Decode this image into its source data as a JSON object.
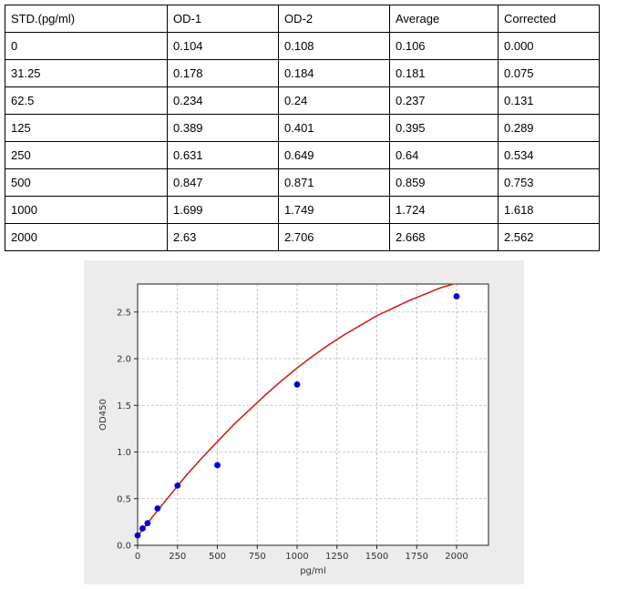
{
  "table": {
    "headers": [
      "STD.(pg/ml)",
      "OD-1",
      "OD-2",
      "Average",
      "Corrected"
    ],
    "rows": [
      [
        "0",
        "0.104",
        "0.108",
        "0.106",
        "0.000"
      ],
      [
        "31.25",
        "0.178",
        "0.184",
        "0.181",
        "0.075"
      ],
      [
        "62.5",
        "0.234",
        "0.24",
        "0.237",
        "0.131"
      ],
      [
        "125",
        "0.389",
        "0.401",
        "0.395",
        "0.289"
      ],
      [
        "250",
        "0.631",
        "0.649",
        "0.64",
        "0.534"
      ],
      [
        "500",
        "0.847",
        "0.871",
        "0.859",
        "0.753"
      ],
      [
        "1000",
        "1.699",
        "1.749",
        "1.724",
        "1.618"
      ],
      [
        "2000",
        "2.63",
        "2.706",
        "2.668",
        "2.562"
      ]
    ]
  },
  "chart_data": {
    "type": "scatter",
    "xlabel": "pg/ml",
    "ylabel": "OD450",
    "xlim": [
      0,
      2200
    ],
    "ylim": [
      0,
      2.8
    ],
    "xticks": [
      0,
      250,
      500,
      750,
      1000,
      1250,
      1500,
      1750,
      2000
    ],
    "yticks": [
      0.0,
      0.5,
      1.0,
      1.5,
      2.0,
      2.5
    ],
    "xtick_labels": [
      "0",
      "250",
      "500",
      "750",
      "1000",
      "1250",
      "1500",
      "1750",
      "2000"
    ],
    "ytick_labels": [
      "0.0",
      "0.5",
      "1.0",
      "1.5",
      "2.0",
      "2.5"
    ],
    "grid": true,
    "points": {
      "x": [
        0,
        31.25,
        62.5,
        125,
        250,
        500,
        1000,
        2000
      ],
      "y": [
        0.106,
        0.181,
        0.237,
        0.395,
        0.64,
        0.859,
        1.724,
        2.668
      ]
    },
    "fit_curve": {
      "x": [
        0,
        100,
        200,
        300,
        400,
        500,
        600,
        700,
        800,
        900,
        1000,
        1100,
        1200,
        1300,
        1400,
        1500,
        1600,
        1700,
        1800,
        1900,
        2000,
        2100,
        2200
      ],
      "y": [
        0.1,
        0.32,
        0.53,
        0.74,
        0.93,
        1.11,
        1.29,
        1.45,
        1.61,
        1.76,
        1.9,
        2.03,
        2.15,
        2.26,
        2.36,
        2.46,
        2.54,
        2.62,
        2.69,
        2.76,
        2.81,
        2.86,
        2.81
      ]
    },
    "colors": {
      "points": "#0000dd",
      "curve": "#d42020",
      "grid": "#b8b8b8"
    }
  }
}
